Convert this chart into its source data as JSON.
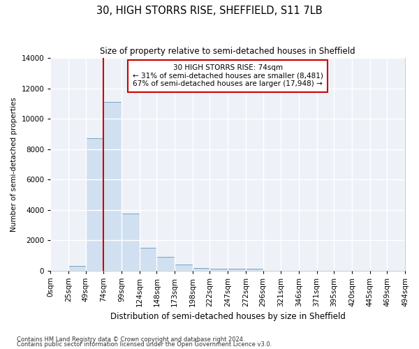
{
  "title1": "30, HIGH STORRS RISE, SHEFFIELD, S11 7LB",
  "title2": "Size of property relative to semi-detached houses in Sheffield",
  "xlabel": "Distribution of semi-detached houses by size in Sheffield",
  "ylabel": "Number of semi-detached properties",
  "footnote1": "Contains HM Land Registry data © Crown copyright and database right 2024.",
  "footnote2": "Contains public sector information licensed under the Open Government Licence v3.0.",
  "annotation_line1": "30 HIGH STORRS RISE: 74sqm",
  "annotation_line2": "← 31% of semi-detached houses are smaller (8,481)",
  "annotation_line3": "67% of semi-detached houses are larger (17,948) →",
  "property_size": 74,
  "bin_edges": [
    0,
    25,
    49,
    74,
    99,
    124,
    148,
    173,
    198,
    222,
    247,
    272,
    296,
    321,
    346,
    371,
    395,
    420,
    445,
    469,
    494
  ],
  "bar_heights": [
    0,
    300,
    8700,
    11100,
    3750,
    1500,
    900,
    400,
    150,
    100,
    100,
    100,
    0,
    0,
    0,
    0,
    0,
    0,
    0,
    0
  ],
  "bar_color": "#d0e0f0",
  "bar_edge_color": "#6699bb",
  "red_line_color": "#cc0000",
  "annotation_box_color": "#cc0000",
  "background_color": "#eef2f8",
  "grid_color": "#ffffff",
  "ylim": [
    0,
    14000
  ],
  "yticks": [
    0,
    2000,
    4000,
    6000,
    8000,
    10000,
    12000,
    14000
  ]
}
